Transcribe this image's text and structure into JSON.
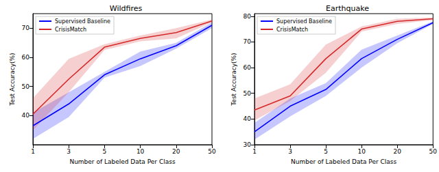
{
  "chart_data": [
    {
      "type": "line",
      "title": "Wildfires",
      "x_label": "Number of Labeled Data Per Class",
      "y_label": "Test Accuracy(%)",
      "categories": [
        "1",
        "3",
        "5",
        "10",
        "20",
        "50"
      ],
      "ylim": [
        30,
        75
      ],
      "yticks": [
        40,
        50,
        60,
        70
      ],
      "grid": false,
      "legend": "upper left",
      "series": [
        {
          "name": "Supervised Baseline",
          "color": "#0000ff",
          "values": [
            36.5,
            44,
            54,
            59.5,
            64,
            71
          ],
          "lower": [
            32,
            39.5,
            53,
            57,
            63,
            70
          ],
          "upper": [
            41,
            48,
            55,
            62,
            65,
            72
          ]
        },
        {
          "name": "CrisisMatch",
          "color": "#d62728",
          "values": [
            40.5,
            52.5,
            63.5,
            66.5,
            68.5,
            72.5
          ],
          "lower": [
            35,
            48,
            62.5,
            65.5,
            66.5,
            72
          ],
          "upper": [
            46,
            59.5,
            64.5,
            67.5,
            70,
            73
          ]
        }
      ]
    },
    {
      "type": "line",
      "title": "Earthquake",
      "x_label": "Number of Labeled Data Per Class",
      "y_label": "Test Accuracy(%)",
      "categories": [
        "1",
        "3",
        "5",
        "10",
        "20",
        "50"
      ],
      "ylim": [
        30,
        81
      ],
      "yticks": [
        30,
        40,
        50,
        60,
        70,
        80
      ],
      "grid": false,
      "legend": "upper left",
      "series": [
        {
          "name": "Supervised Baseline",
          "color": "#0000ff",
          "values": [
            35,
            45,
            51.5,
            63.5,
            71,
            77.5
          ],
          "lower": [
            32,
            41,
            49,
            60,
            69.5,
            77
          ],
          "upper": [
            38.5,
            48,
            54,
            67,
            72.5,
            78
          ]
        },
        {
          "name": "CrisisMatch",
          "color": "#d62728",
          "values": [
            43.5,
            49,
            63.5,
            75,
            78,
            79
          ],
          "lower": [
            39.5,
            47,
            58,
            74,
            77,
            78.5
          ],
          "upper": [
            48,
            53.5,
            69,
            76,
            79,
            79.5
          ]
        }
      ]
    }
  ]
}
